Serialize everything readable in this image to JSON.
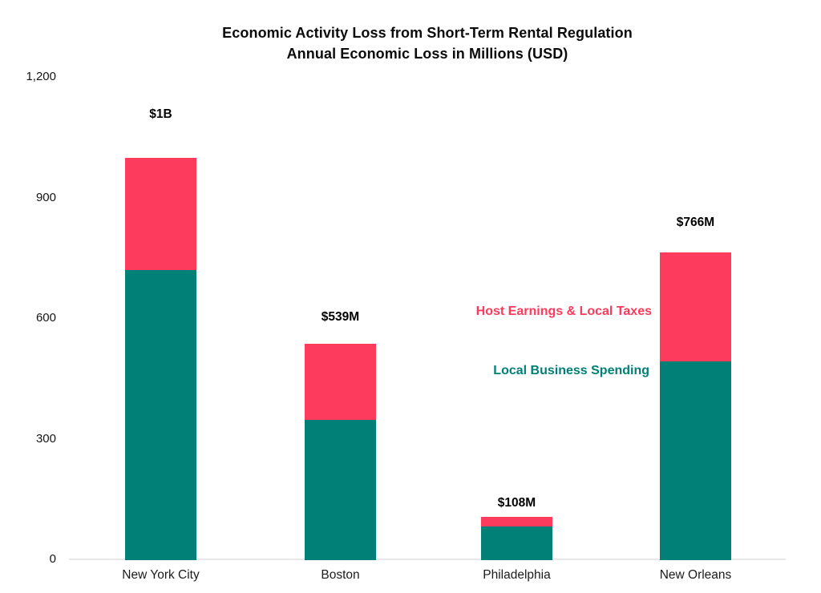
{
  "title": {
    "line1": "Economic Activity Loss from Short-Term Rental Regulation",
    "line2": "Annual Economic Loss in Millions (USD)"
  },
  "colors": {
    "host_earnings": "#FD3B5C",
    "local_business": "#008077",
    "axis_line": "#E8E8E8",
    "text": "#111111"
  },
  "chart_data": {
    "type": "bar",
    "stacked": true,
    "title": "Economic Activity Loss from Short-Term Rental Regulation",
    "subtitle": "Annual Economic Loss in Millions (USD)",
    "categories": [
      "New York City",
      "Boston",
      "Philadelphia",
      "New Orleans"
    ],
    "series": [
      {
        "name": "Local Business Spending",
        "color": "#008077",
        "values": [
          722,
          349,
          84,
          494
        ]
      },
      {
        "name": "Host Earnings & Local Taxes",
        "color": "#FD3B5C",
        "values": [
          278,
          190,
          24,
          272
        ]
      }
    ],
    "totals": [
      1000,
      539,
      108,
      766
    ],
    "total_labels": [
      "$1B",
      "$539M",
      "$108M",
      "$766M"
    ],
    "xlabel": "",
    "ylabel": "",
    "ylim": [
      0,
      1200
    ],
    "yticks": [
      0,
      300,
      600,
      900,
      1200
    ],
    "ytick_labels": [
      "0",
      "300",
      "600",
      "900",
      "1,200"
    ],
    "grid": false,
    "legend_position": "inline-annotations-right-of-philadelphia",
    "annotations": [
      {
        "text": "Host Earnings & Local Taxes",
        "color": "#FD3B5C"
      },
      {
        "text": "Local Business Spending",
        "color": "#008077"
      }
    ]
  }
}
